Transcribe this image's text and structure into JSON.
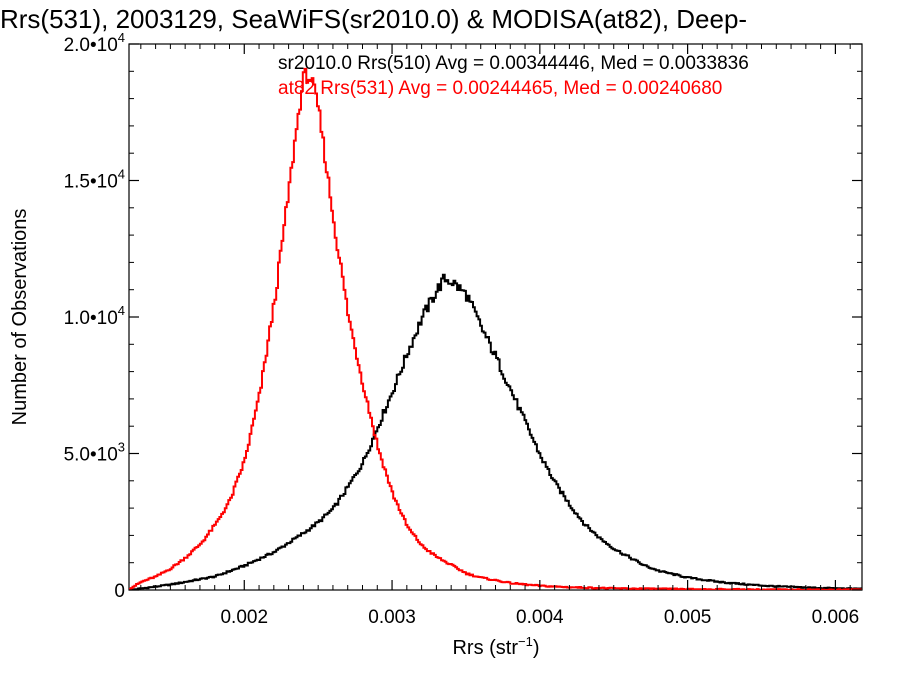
{
  "chart_data": {
    "type": "histogram",
    "title": "Rrs(531), 2003129, SeaWiFS(sr2010.0) & MODISA(at82), Deep-",
    "xlabel": {
      "base": "Rrs (str",
      "sup": "−1",
      "end": ")"
    },
    "ylabel": "Number of Observations",
    "xlim": [
      0.00122,
      0.00618
    ],
    "ylim": [
      0,
      20000
    ],
    "x_ticks": [
      {
        "value": 0.002,
        "label": "0.002"
      },
      {
        "value": 0.003,
        "label": "0.003"
      },
      {
        "value": 0.004,
        "label": "0.004"
      },
      {
        "value": 0.005,
        "label": "0.005"
      },
      {
        "value": 0.006,
        "label": "0.006"
      }
    ],
    "y_ticks": [
      {
        "value": 0,
        "mantissa": "0",
        "exp": ""
      },
      {
        "value": 5000,
        "mantissa": "5.0•10",
        "exp": "3"
      },
      {
        "value": 10000,
        "mantissa": "1.0•10",
        "exp": "4"
      },
      {
        "value": 15000,
        "mantissa": "1.5•10",
        "exp": "4"
      },
      {
        "value": 20000,
        "mantissa": "2.0•10",
        "exp": "4"
      }
    ],
    "grid": false,
    "legend_position": "top-right",
    "series": [
      {
        "name": "sr2010.0 Rrs(510) Avg = 0.00344446, Med = 0.0033836",
        "color": "#000000",
        "points": [
          [
            0.00122,
            0
          ],
          [
            0.0015,
            200
          ],
          [
            0.0018,
            500
          ],
          [
            0.002,
            900
          ],
          [
            0.0022,
            1400
          ],
          [
            0.0024,
            2100
          ],
          [
            0.0025,
            2500
          ],
          [
            0.0026,
            3000
          ],
          [
            0.0027,
            3800
          ],
          [
            0.0028,
            4700
          ],
          [
            0.0029,
            6000
          ],
          [
            0.003,
            7300
          ],
          [
            0.0031,
            8700
          ],
          [
            0.0032,
            10000
          ],
          [
            0.0033,
            11000
          ],
          [
            0.00335,
            11400
          ],
          [
            0.0034,
            11300
          ],
          [
            0.0035,
            10800
          ],
          [
            0.0036,
            9600
          ],
          [
            0.0037,
            8500
          ],
          [
            0.0038,
            7300
          ],
          [
            0.0039,
            6100
          ],
          [
            0.004,
            4900
          ],
          [
            0.0041,
            3900
          ],
          [
            0.0042,
            3100
          ],
          [
            0.0043,
            2400
          ],
          [
            0.0044,
            1900
          ],
          [
            0.0045,
            1500
          ],
          [
            0.0046,
            1200
          ],
          [
            0.0047,
            900
          ],
          [
            0.0048,
            700
          ],
          [
            0.005,
            450
          ],
          [
            0.0052,
            300
          ],
          [
            0.0054,
            200
          ],
          [
            0.0056,
            130
          ],
          [
            0.0058,
            90
          ],
          [
            0.006,
            60
          ],
          [
            0.00618,
            40
          ]
        ]
      },
      {
        "name": "at82 Rrs(531) Avg = 0.00244465, Med = 0.00240680",
        "color": "#ff0000",
        "points": [
          [
            0.00122,
            50
          ],
          [
            0.0013,
            300
          ],
          [
            0.0014,
            500
          ],
          [
            0.0015,
            800
          ],
          [
            0.0016,
            1200
          ],
          [
            0.0017,
            1700
          ],
          [
            0.0018,
            2400
          ],
          [
            0.0019,
            3300
          ],
          [
            0.002,
            4800
          ],
          [
            0.0021,
            7200
          ],
          [
            0.0022,
            10600
          ],
          [
            0.0023,
            14800
          ],
          [
            0.00235,
            17000
          ],
          [
            0.0024,
            18900
          ],
          [
            0.00245,
            18700
          ],
          [
            0.0025,
            17500
          ],
          [
            0.0026,
            13500
          ],
          [
            0.0027,
            10000
          ],
          [
            0.0028,
            7500
          ],
          [
            0.0029,
            5200
          ],
          [
            0.003,
            3500
          ],
          [
            0.0031,
            2300
          ],
          [
            0.0032,
            1600
          ],
          [
            0.0033,
            1200
          ],
          [
            0.0034,
            900
          ],
          [
            0.0035,
            600
          ],
          [
            0.0036,
            450
          ],
          [
            0.0037,
            350
          ],
          [
            0.0038,
            250
          ],
          [
            0.004,
            150
          ],
          [
            0.0042,
            100
          ],
          [
            0.0045,
            60
          ],
          [
            0.005,
            30
          ],
          [
            0.0055,
            15
          ],
          [
            0.006,
            10
          ],
          [
            0.00618,
            8
          ]
        ]
      }
    ]
  }
}
